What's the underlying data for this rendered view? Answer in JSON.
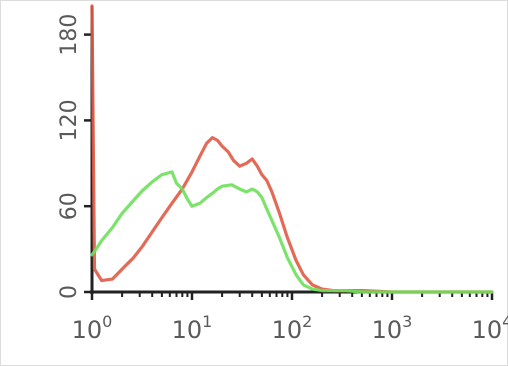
{
  "chart_data": {
    "type": "line",
    "title": "",
    "xlabel": "",
    "ylabel": "",
    "x_scale": "log",
    "xlim": [
      1,
      10000
    ],
    "ylim": [
      0,
      200
    ],
    "x_ticks": [
      {
        "value": 1,
        "base": "10",
        "exp": "0"
      },
      {
        "value": 10,
        "base": "10",
        "exp": "1"
      },
      {
        "value": 100,
        "base": "10",
        "exp": "2"
      },
      {
        "value": 1000,
        "base": "10",
        "exp": "3"
      },
      {
        "value": 10000,
        "base": "10",
        "exp": "4"
      }
    ],
    "y_ticks": [
      {
        "value": 0,
        "label": "0"
      },
      {
        "value": 60,
        "label": "60"
      },
      {
        "value": 120,
        "label": "120"
      },
      {
        "value": 180,
        "label": "180"
      }
    ],
    "grid": false,
    "legend": "none",
    "series": [
      {
        "color": "#e05a45",
        "x": [
          1,
          1.06,
          1.25,
          1.6,
          2.0,
          2.6,
          3.2,
          4.0,
          5.0,
          6.3,
          8.0,
          10,
          12,
          14,
          16,
          18,
          20,
          23,
          26,
          30,
          35,
          40,
          45,
          50,
          56,
          63,
          75,
          90,
          110,
          130,
          160,
          200,
          260,
          350,
          500,
          1000,
          10000
        ],
        "y": [
          200,
          16,
          8,
          9,
          16,
          24,
          32,
          42,
          52,
          62,
          72,
          84,
          95,
          104,
          108,
          106,
          102,
          98,
          92,
          88,
          90,
          93,
          88,
          82,
          78,
          70,
          55,
          38,
          22,
          12,
          5,
          2,
          1,
          1,
          1,
          0,
          0
        ]
      },
      {
        "color": "#6ee05a",
        "x": [
          1,
          1.1,
          1.25,
          1.6,
          2.0,
          2.6,
          3.2,
          4.0,
          5.0,
          6.3,
          7.0,
          8.0,
          9.0,
          10,
          12,
          14,
          16,
          18,
          20,
          25,
          30,
          35,
          40,
          45,
          50,
          56,
          63,
          75,
          90,
          110,
          130,
          160,
          200,
          260,
          350,
          500,
          1000,
          10000
        ],
        "y": [
          26,
          30,
          36,
          45,
          55,
          64,
          71,
          77,
          82,
          84,
          76,
          72,
          65,
          60,
          62,
          66,
          69,
          72,
          74,
          75,
          72,
          70,
          72,
          70,
          66,
          58,
          50,
          38,
          24,
          12,
          5,
          2,
          1,
          1,
          1,
          0,
          0,
          0
        ]
      }
    ]
  }
}
